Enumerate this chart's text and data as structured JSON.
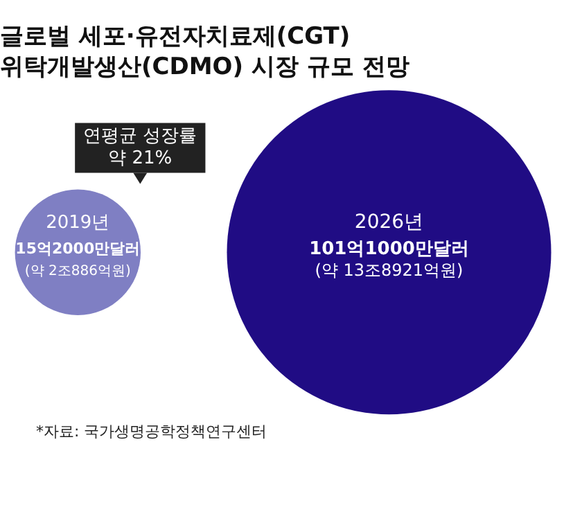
{
  "chart_data": {
    "type": "other",
    "title": "글로벌 세포·유전자치료제(CGT)\n위탁개발생산(CDMO) 시장 규모 전망",
    "categories": [
      "2019년",
      "2026년"
    ],
    "values": [
      15.2,
      101.1
    ],
    "colors": [
      "#7f7fc3",
      "#200c84"
    ],
    "value_labels": [
      "15억2000만달러",
      "101억1000만달러"
    ],
    "annotations": [
      {
        "text": "(약 2조886억원)",
        "x": "2019년"
      },
      {
        "text": "(약 13조8921억원)",
        "x": "2026년"
      },
      "연평균 성장률\n약 21%",
      "*자료: 국가생명공학정책연구센터"
    ]
  }
}
